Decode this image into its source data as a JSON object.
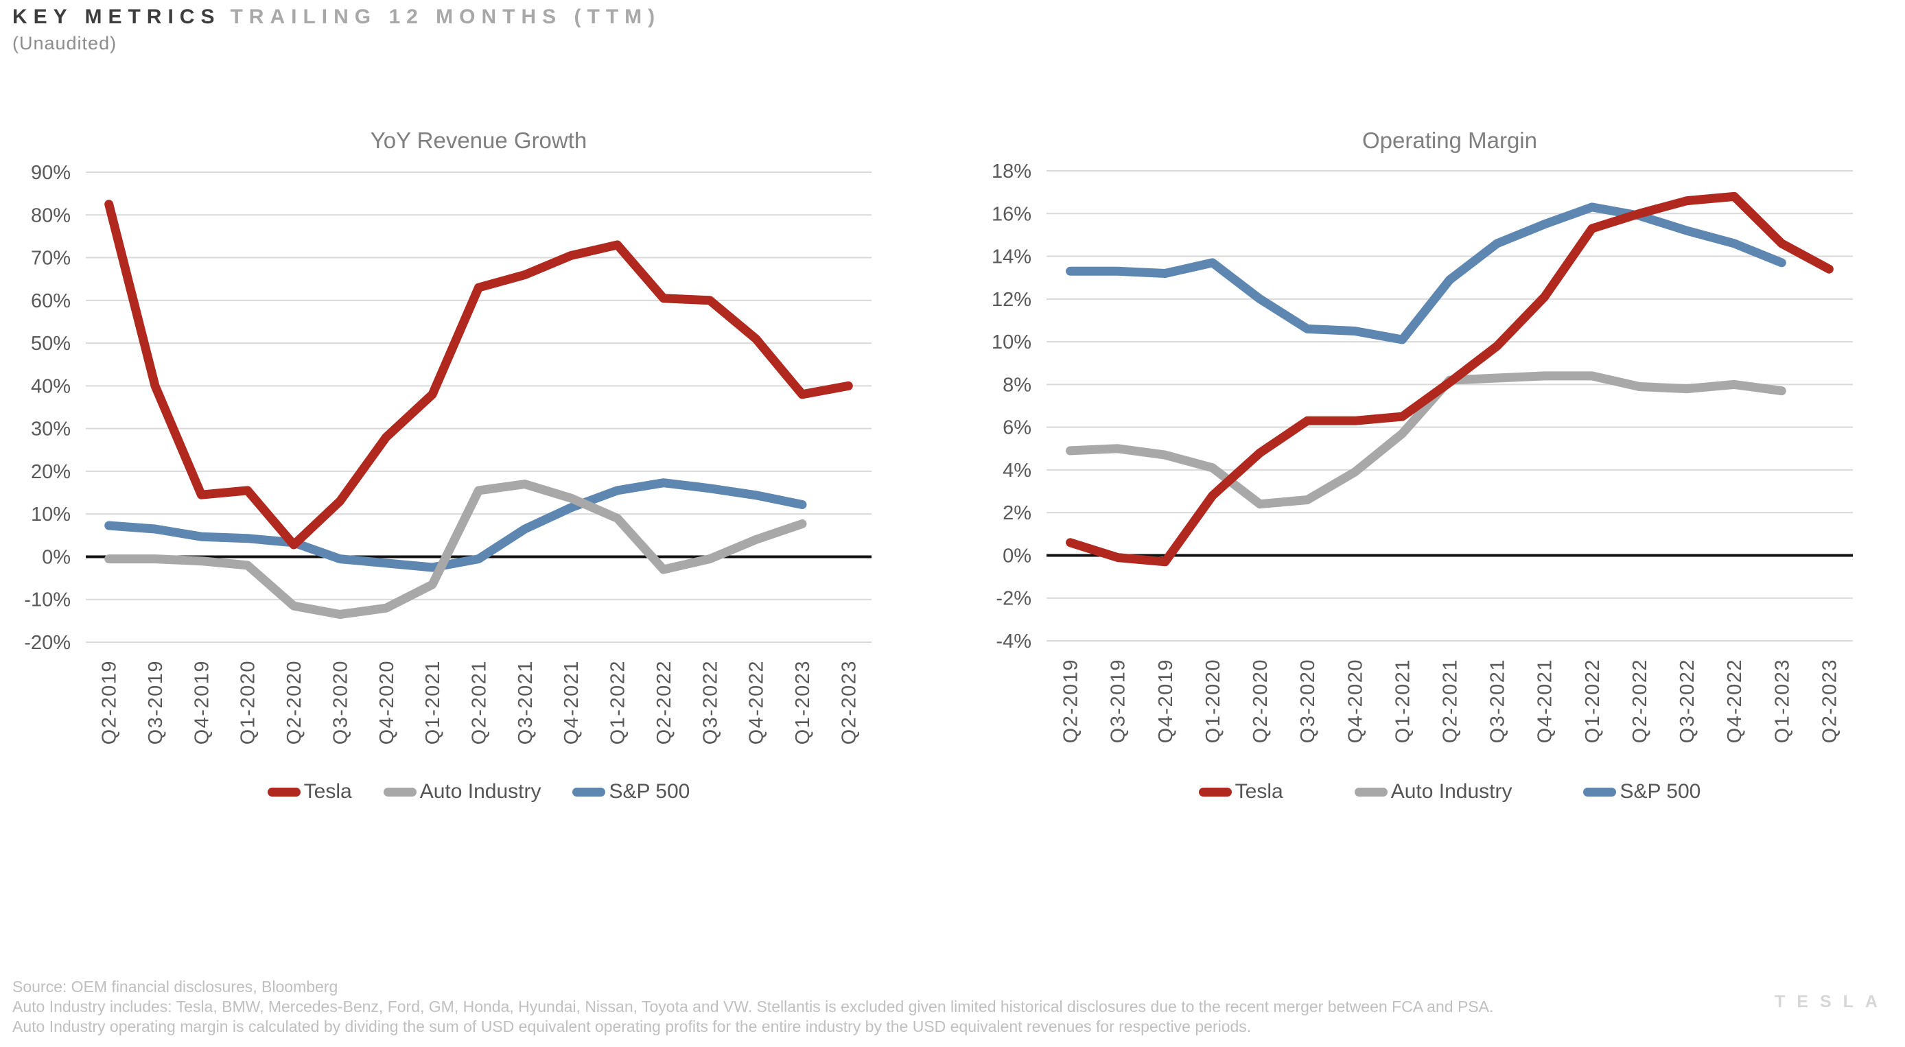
{
  "header": {
    "title_primary": "KEY METRICS",
    "title_secondary": "TRAILING 12 MONTHS (TTM)",
    "subtitle": "(Unaudited)"
  },
  "colors": {
    "tesla": "#b0281e",
    "auto_industry": "#a8a8a8",
    "sp500": "#5d86b0",
    "gridline": "#d9d9d9",
    "zero_line": "#111111",
    "axis_label": "#595959",
    "chart_title": "#7f7f7f"
  },
  "chart_data": [
    {
      "type": "line",
      "title": "YoY Revenue Growth",
      "unit": "%",
      "grid": true,
      "legend_position": "bottom",
      "ylim": [
        -20,
        90
      ],
      "ytick_step": 10,
      "categories": [
        "Q2-2019",
        "Q3-2019",
        "Q4-2019",
        "Q1-2020",
        "Q2-2020",
        "Q3-2020",
        "Q4-2020",
        "Q1-2021",
        "Q2-2021",
        "Q3-2021",
        "Q4-2021",
        "Q1-2022",
        "Q2-2022",
        "Q3-2022",
        "Q4-2022",
        "Q1-2023",
        "Q2-2023"
      ],
      "series": [
        {
          "name": "Tesla",
          "color": "#b0281e",
          "values": [
            82.5,
            40,
            14.5,
            15.5,
            2.8,
            13,
            28,
            38,
            63,
            66,
            70.5,
            73,
            60.5,
            60,
            51,
            38,
            40
          ]
        },
        {
          "name": "Auto Industry",
          "color": "#a8a8a8",
          "values": [
            -0.5,
            -0.5,
            -1,
            -2,
            -11.5,
            -13.5,
            -12,
            -6.5,
            15.5,
            17,
            13.7,
            9,
            -3,
            -0.5,
            4,
            7.7,
            null
          ]
        },
        {
          "name": "S&P 500",
          "color": "#5d86b0",
          "values": [
            7.3,
            6.5,
            4.7,
            4.3,
            3.3,
            -0.5,
            -1.5,
            -2.5,
            -0.5,
            6.5,
            11.5,
            15.5,
            17.3,
            16,
            14.4,
            12.2,
            null
          ]
        }
      ]
    },
    {
      "type": "line",
      "title": "Operating Margin",
      "unit": "%",
      "grid": true,
      "legend_position": "bottom",
      "ylim": [
        -4,
        18
      ],
      "ytick_step": 2,
      "categories": [
        "Q2-2019",
        "Q3-2019",
        "Q4-2019",
        "Q1-2020",
        "Q2-2020",
        "Q3-2020",
        "Q4-2020",
        "Q1-2021",
        "Q2-2021",
        "Q3-2021",
        "Q4-2021",
        "Q1-2022",
        "Q2-2022",
        "Q3-2022",
        "Q4-2022",
        "Q1-2023",
        "Q2-2023"
      ],
      "series": [
        {
          "name": "Tesla",
          "color": "#b0281e",
          "values": [
            0.6,
            -0.1,
            -0.3,
            2.8,
            4.8,
            6.3,
            6.3,
            6.5,
            8.1,
            9.8,
            12.1,
            15.3,
            16,
            16.6,
            16.8,
            14.6,
            13.4
          ]
        },
        {
          "name": "Auto Industry",
          "color": "#a8a8a8",
          "values": [
            4.9,
            5,
            4.7,
            4.1,
            2.4,
            2.6,
            3.9,
            5.7,
            8.2,
            8.3,
            8.4,
            8.4,
            7.9,
            7.8,
            8,
            7.7,
            null
          ]
        },
        {
          "name": "S&P 500",
          "color": "#5d86b0",
          "values": [
            13.3,
            13.3,
            13.2,
            13.7,
            12,
            10.6,
            10.5,
            10.1,
            12.9,
            14.6,
            15.5,
            16.3,
            15.9,
            15.2,
            14.6,
            13.7,
            null
          ]
        }
      ]
    }
  ],
  "footer": {
    "lines": [
      "Source: OEM financial disclosures, Bloomberg",
      "Auto Industry includes: Tesla, BMW, Mercedes-Benz, Ford, GM, Honda, Hyundai, Nissan, Toyota and VW. Stellantis is excluded given limited historical disclosures due to the recent merger between FCA and PSA.",
      "Auto Industry operating margin is calculated by dividing the sum of USD equivalent operating profits for the entire industry by the USD equivalent revenues for respective periods."
    ]
  },
  "logo": {
    "text": "TESLA"
  }
}
